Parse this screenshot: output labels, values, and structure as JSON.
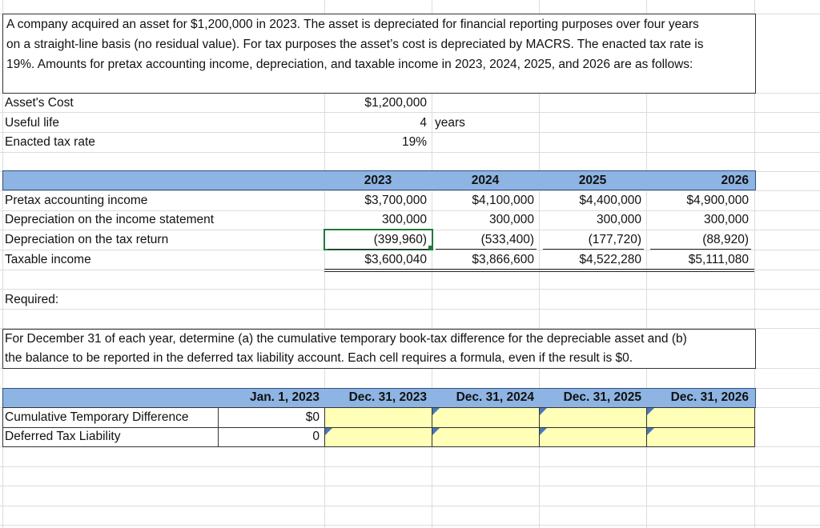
{
  "intro": {
    "line1": "A company acquired an asset for $1,200,000 in 2023. The asset is depreciated for financial reporting purposes over four years",
    "line2": "on a straight-line basis (no residual value). For tax purposes the asset’s cost is depreciated by MACRS. The enacted tax rate is",
    "line3": "19%. Amounts for pretax accounting income, depreciation, and taxable income in 2023, 2024, 2025, and 2026 are as follows:"
  },
  "assumptions": {
    "cost_label": "Asset's Cost",
    "cost_value": "$1,200,000",
    "life_label": "Useful life",
    "life_value": "4",
    "life_unit": "years",
    "rate_label": "Enacted tax rate",
    "rate_value": "19%"
  },
  "schedule": {
    "years": [
      "2023",
      "2024",
      "2025",
      "2026"
    ],
    "rows": [
      {
        "label": "Pretax accounting income",
        "values": [
          "$3,700,000",
          "$4,100,000",
          "$4,400,000",
          "$4,900,000"
        ]
      },
      {
        "label": "Depreciation on the income statement",
        "values": [
          "300,000",
          "300,000",
          "300,000",
          "300,000"
        ]
      },
      {
        "label": "Depreciation on the tax return",
        "values": [
          "(399,960)",
          "(533,400)",
          "(177,720)",
          "(88,920)"
        ]
      },
      {
        "label": "Taxable income",
        "values": [
          "$3,600,040",
          "$3,866,600",
          "$4,522,280",
          "$5,111,080"
        ]
      }
    ]
  },
  "required": {
    "heading": "Required:",
    "line1": "For December 31 of each year, determine (a) the cumulative temporary book-tax difference for the depreciable asset and (b)",
    "line2": "the balance to be reported in the deferred tax liability account.  Each cell requires a formula, even if the result is $0."
  },
  "answer": {
    "headers": [
      "Jan. 1, 2023",
      "Dec. 31, 2023",
      "Dec. 31, 2024",
      "Dec. 31, 2025",
      "Dec. 31, 2026"
    ],
    "rows": [
      {
        "label": "Cumulative Temporary Difference",
        "jan": "$0"
      },
      {
        "label": "Deferred Tax Liability",
        "jan": "0"
      }
    ]
  },
  "colors": {
    "header_band": "#8db4e2",
    "input_cell": "#ffffb8",
    "selection": "#1e7a3c",
    "comment_marker": "#4a79b5"
  }
}
